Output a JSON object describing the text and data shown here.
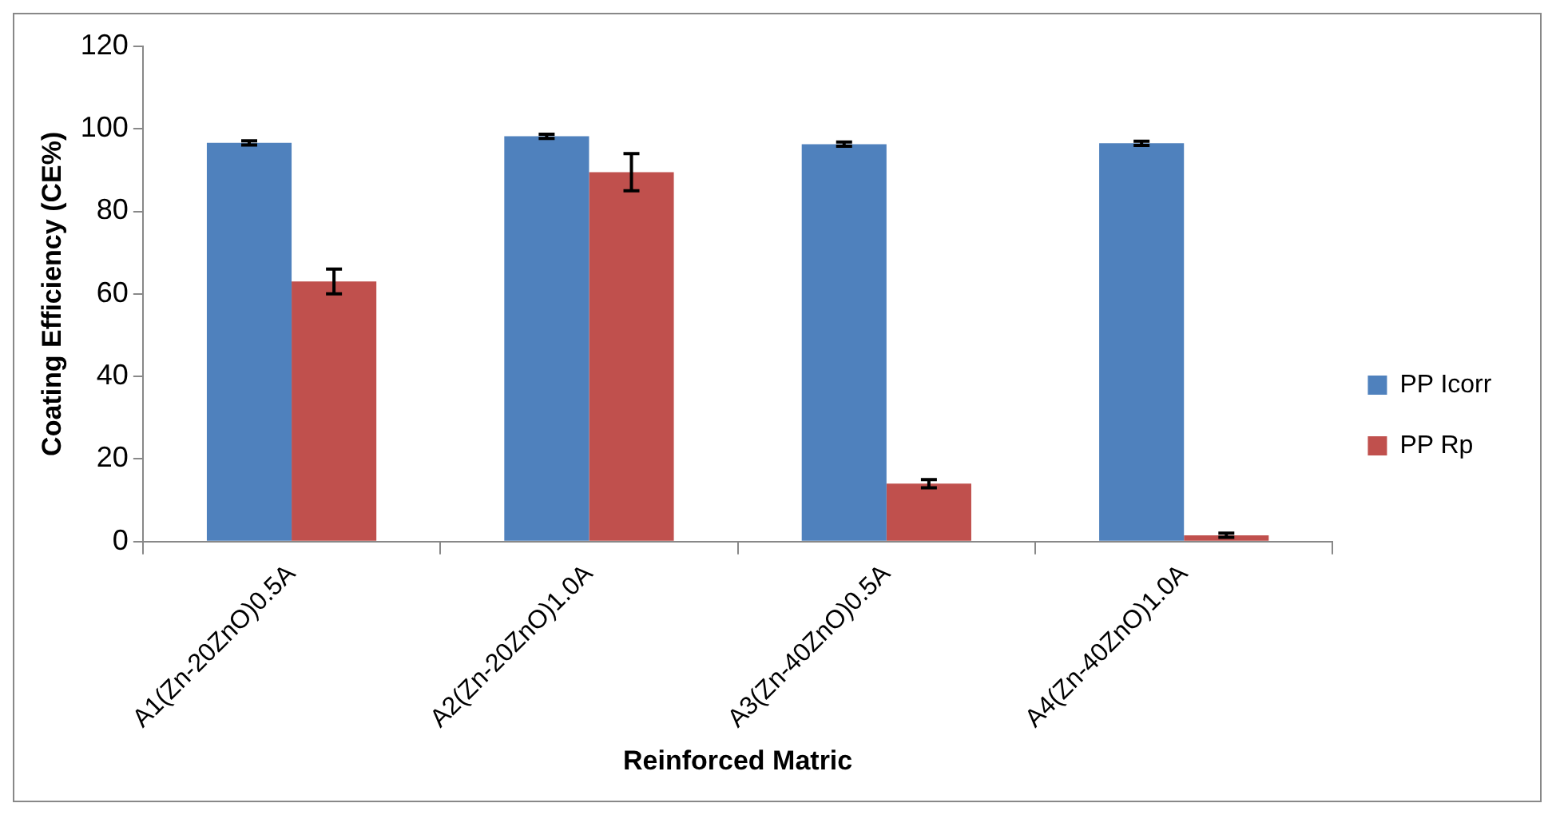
{
  "chart_data": {
    "type": "bar",
    "xlabel": "Reinforced Matric",
    "ylabel": "Coating Efficiency (CE%)",
    "categories": [
      "A1(Zn-20ZnO)0.5A",
      "A2(Zn-20ZnO)1.0A",
      "A3(Zn-40ZnO)0.5A",
      "A4(Zn-40ZnO)1.0A"
    ],
    "series": [
      {
        "name": "PP Icorr",
        "color": "#4f81bd",
        "values": [
          96.6,
          98.2,
          96.3,
          96.5
        ],
        "errors": [
          0.5,
          0.5,
          0.5,
          0.5
        ]
      },
      {
        "name": "PP Rp",
        "color": "#c0504d",
        "values": [
          63,
          89.5,
          14,
          1.5
        ],
        "errors": [
          3,
          4.5,
          1,
          0.5
        ]
      }
    ],
    "ylim": [
      0,
      120
    ],
    "yticks": [
      0,
      20,
      40,
      60,
      80,
      100,
      120
    ],
    "grid": false,
    "legend": "right"
  }
}
